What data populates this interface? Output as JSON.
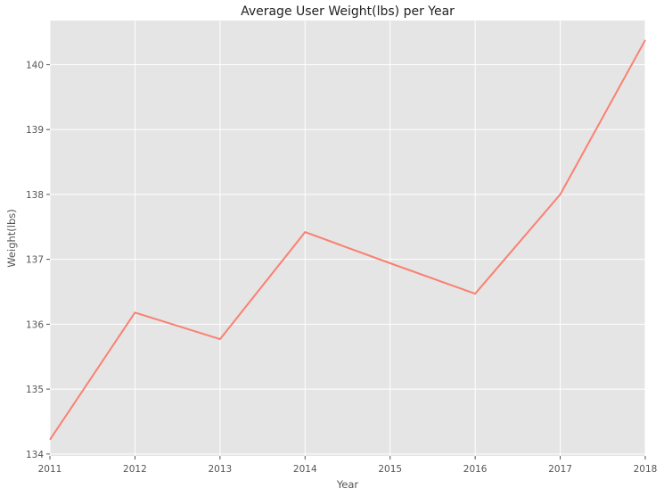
{
  "chart_data": {
    "type": "line",
    "title": "Average User Weight(lbs) per Year",
    "xlabel": "Year",
    "ylabel": "Weight(lbs)",
    "x": [
      2011,
      2012,
      2013,
      2014,
      2015,
      2016,
      2017,
      2018
    ],
    "x_tick_labels": [
      "2011",
      "2012",
      "2013",
      "2014",
      "2015",
      "2016",
      "2017",
      "2018"
    ],
    "y_tick_labels": [
      "134",
      "135",
      "136",
      "137",
      "138",
      "139",
      "140"
    ],
    "xlim": [
      2011,
      2018
    ],
    "ylim": [
      133.97,
      140.68
    ],
    "grid": true,
    "series": [
      {
        "color": "#fa8072",
        "values": [
          134.22,
          136.18,
          135.77,
          137.42,
          136.94,
          136.47,
          138.0,
          140.38
        ]
      }
    ]
  },
  "style": {
    "plot_background": "#e5e5e5",
    "grid_color": "#ffffff"
  }
}
